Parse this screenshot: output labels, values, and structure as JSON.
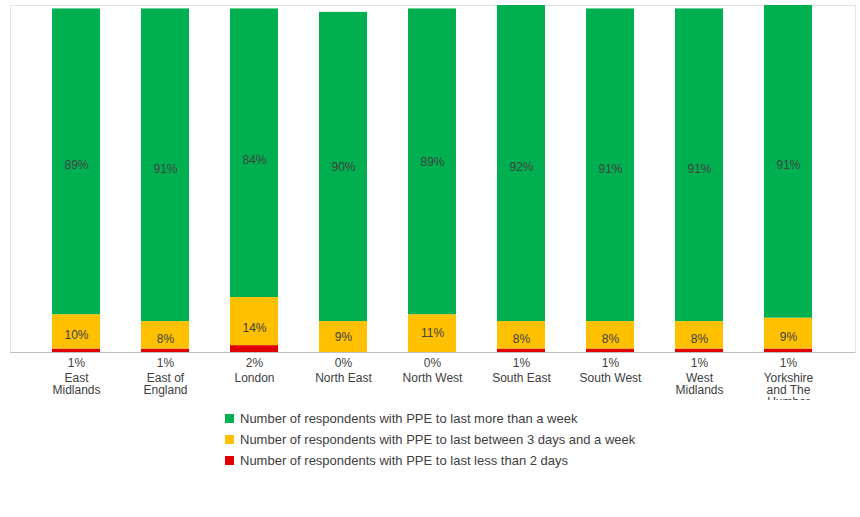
{
  "chart_data": {
    "type": "bar",
    "stacked": true,
    "categories": [
      "East Midlands",
      "East of England",
      "London",
      "North East",
      "North West",
      "South East",
      "South West",
      "West Midlands",
      "Yorkshire and The Humber"
    ],
    "series": [
      {
        "name": "Number of respondents with PPE to last more than a week",
        "color": "#00b050",
        "values": [
          89,
          91,
          84,
          90,
          89,
          92,
          91,
          91,
          91
        ],
        "value_labels": [
          "89%",
          "91%",
          "84%",
          "90%",
          "89%",
          "92%",
          "91%",
          "91%",
          "91%"
        ]
      },
      {
        "name": "Number of respondents with PPE to last between 3 days and a week",
        "color": "#ffc000",
        "values": [
          10,
          8,
          14,
          9,
          11,
          8,
          8,
          8,
          9
        ],
        "value_labels": [
          "10%",
          "8%",
          "14%",
          "9%",
          "11%",
          "8%",
          "8%",
          "8%",
          "9%"
        ]
      },
      {
        "name": "Number of respondents with PPE to last less than 2 days",
        "color": "#e00000",
        "values": [
          1,
          1,
          2,
          0,
          0,
          1,
          1,
          1,
          1
        ],
        "value_labels": [
          "1%",
          "1%",
          "2%",
          "0%",
          "0%",
          "1%",
          "1%",
          "1%",
          "1%"
        ]
      }
    ],
    "ylim": [
      0,
      101
    ],
    "yticks": [],
    "data_labels": true,
    "tick_labels": "x",
    "legend": "bottom"
  }
}
